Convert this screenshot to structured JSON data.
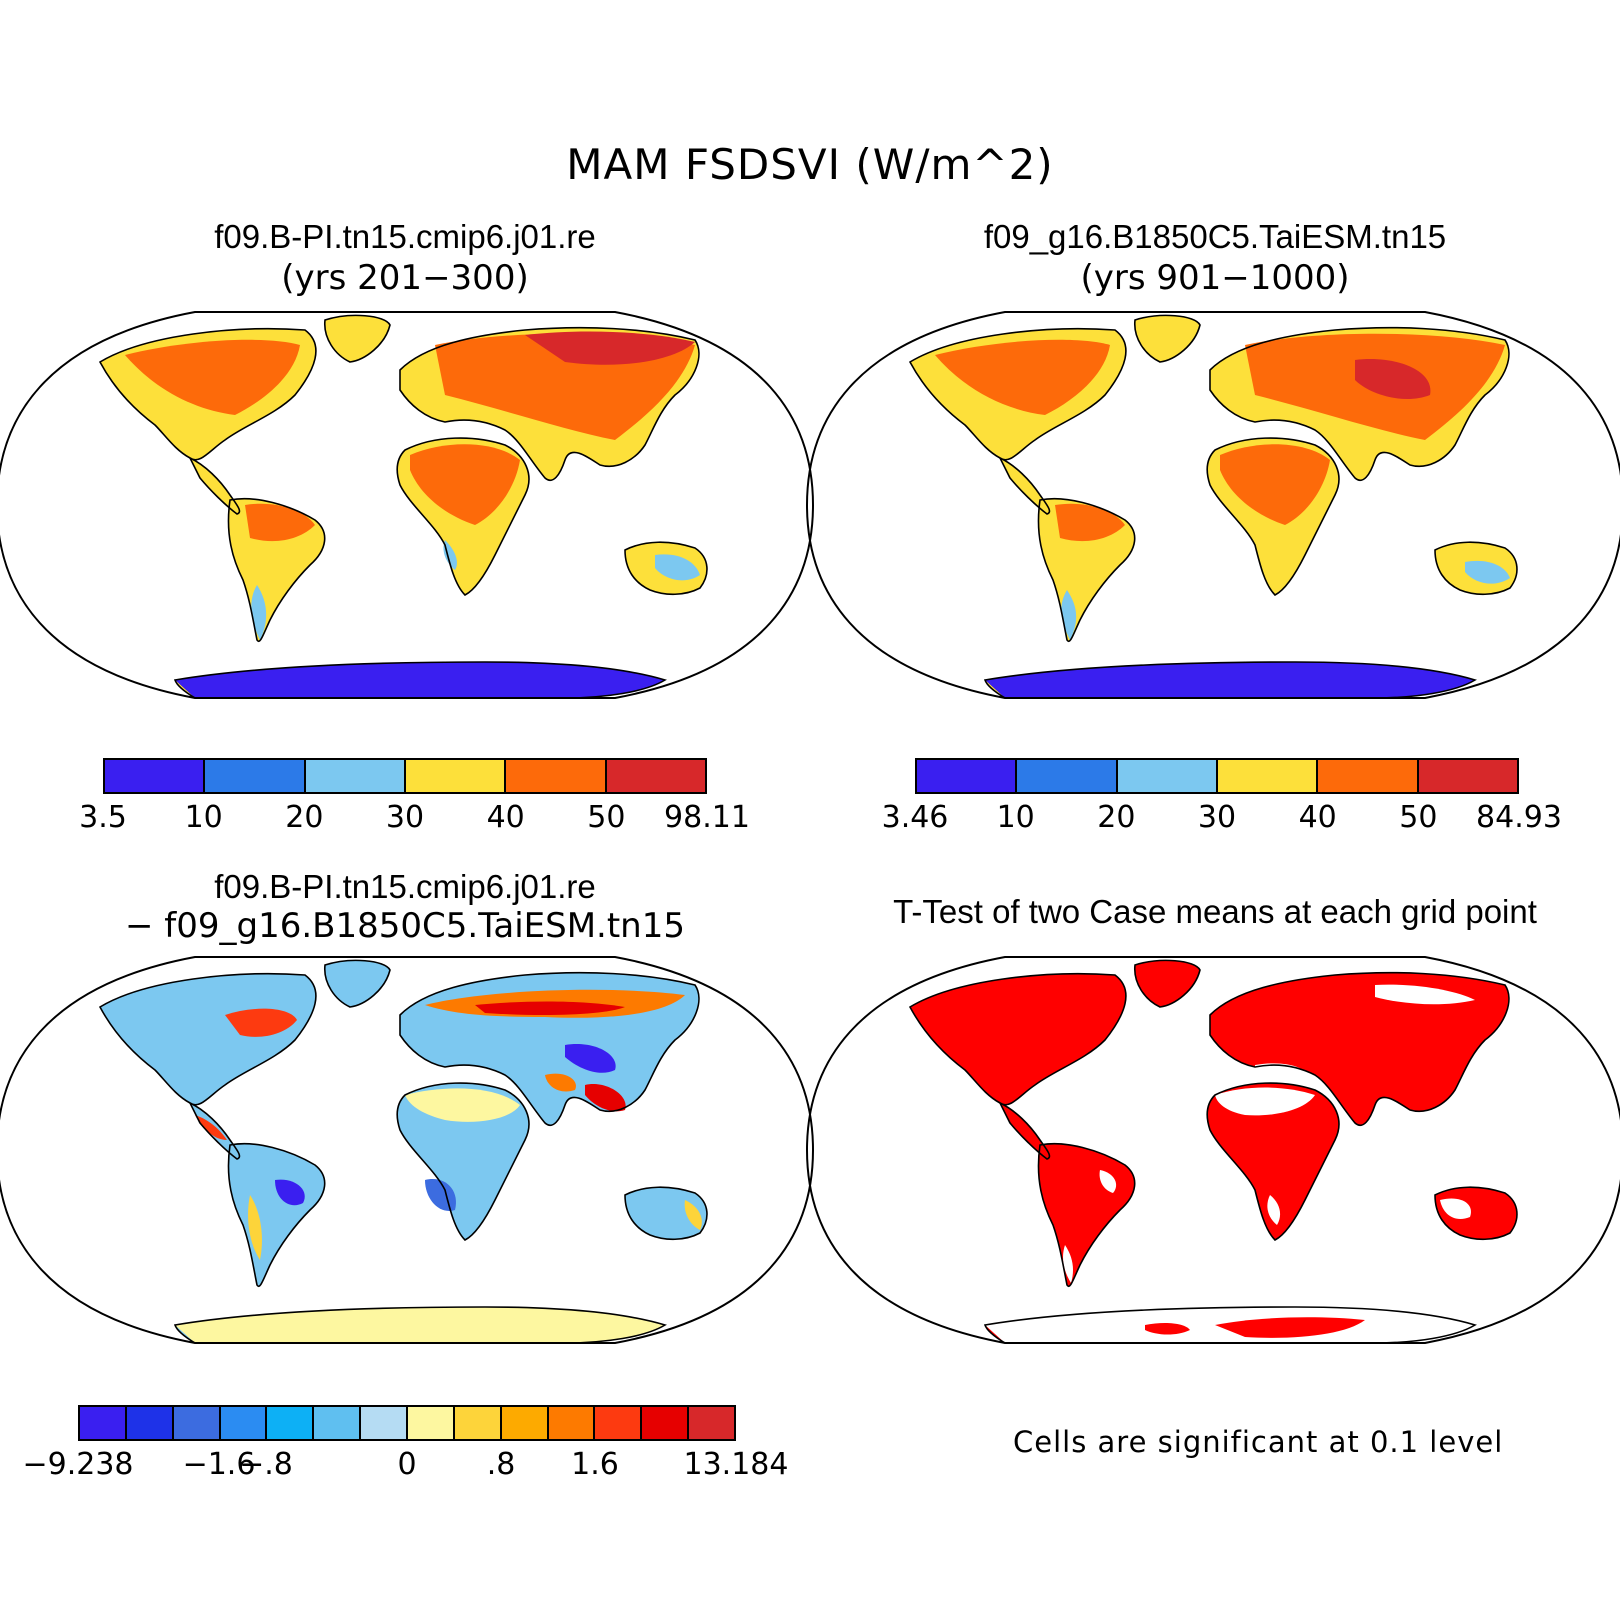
{
  "main_title": "MAM FSDSVI (W/m^2)",
  "panels": {
    "top_left": {
      "title": "f09.B-PI.tn15.cmip6.j01.re",
      "subtitle": "(yrs 201−300)",
      "colorbar": {
        "colors": [
          "#3a1ff0",
          "#2c7ae8",
          "#7cc8f0",
          "#fde03a",
          "#fd6a0a",
          "#d7282a"
        ],
        "labels": [
          "3.5",
          "10",
          "20",
          "30",
          "40",
          "50",
          "98.11"
        ]
      }
    },
    "top_right": {
      "title": "f09_g16.B1850C5.TaiESM.tn15",
      "subtitle": "(yrs 901−1000)",
      "colorbar": {
        "colors": [
          "#3a1ff0",
          "#2c7ae8",
          "#7cc8f0",
          "#fde03a",
          "#fd6a0a",
          "#d7282a"
        ],
        "labels": [
          "3.46",
          "10",
          "20",
          "30",
          "40",
          "50",
          "84.93"
        ]
      }
    },
    "bottom_left": {
      "title": "f09.B-PI.tn15.cmip6.j01.re",
      "subtitle": "− f09_g16.B1850C5.TaiESM.tn15",
      "colorbar": {
        "colors": [
          "#3a1ff0",
          "#1e32e8",
          "#3c6ce0",
          "#2b8cf2",
          "#0db0f5",
          "#5fbff0",
          "#b5dcf3",
          "#fdf7a0",
          "#fdd43a",
          "#fdaa00",
          "#fd7a00",
          "#fd3a10",
          "#e60000",
          "#d7282a"
        ],
        "labels": [
          "−9.238",
          "−1.6",
          "−.8",
          "0",
          ".8",
          "1.6",
          "13.184"
        ]
      }
    },
    "bottom_right": {
      "title": "T-Test of two Case means at each grid point",
      "note": "Cells are significant at 0.1 level",
      "fill_color": "#ff0000"
    }
  }
}
